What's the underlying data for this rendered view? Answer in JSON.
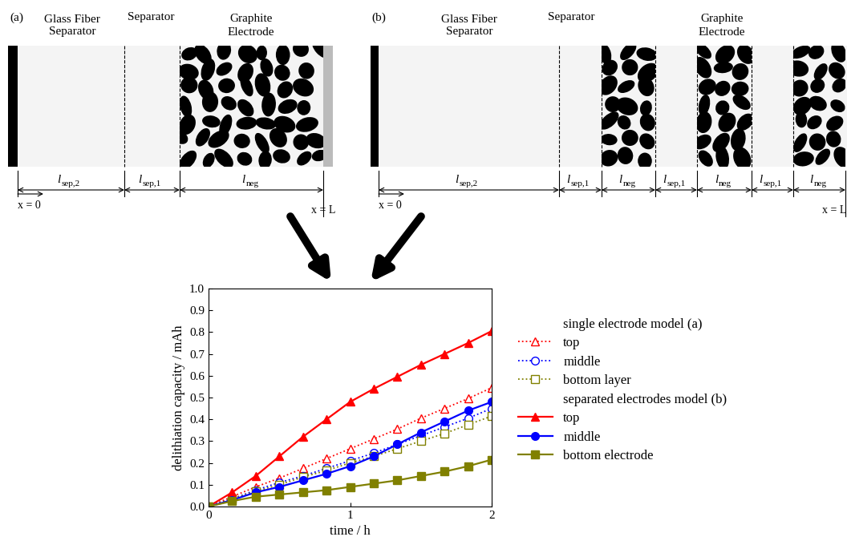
{
  "diagram": {
    "panels": [
      {
        "label": "(a)",
        "headers": [
          "Glass Fiber\nSeparator",
          "Separator",
          "Graphite\nElectrode"
        ],
        "segments": [
          {
            "symbol": "l",
            "subscript": "sep,2"
          },
          {
            "symbol": "l",
            "subscript": "sep,1"
          },
          {
            "symbol": "l",
            "subscript": "neg"
          }
        ],
        "origin": "x = 0",
        "end": "x = L"
      },
      {
        "label": "(b)",
        "headers": [
          "Glass Fiber\nSeparator",
          "Separator",
          "Graphite\nElectrode"
        ],
        "segments": [
          {
            "symbol": "l",
            "subscript": "sep,2"
          },
          {
            "symbol": "l",
            "subscript": "sep,1"
          },
          {
            "symbol": "l",
            "subscript": "neg"
          },
          {
            "symbol": "l",
            "subscript": "sep,1"
          },
          {
            "symbol": "l",
            "subscript": "neg"
          },
          {
            "symbol": "l",
            "subscript": "sep,1"
          },
          {
            "symbol": "l",
            "subscript": "neg"
          }
        ],
        "origin": "x = 0",
        "end": "x = L"
      }
    ]
  },
  "chart_data": {
    "type": "line",
    "x_label": "time / h",
    "y_label": "delithiation capacity / mAh",
    "xlim": [
      0,
      2
    ],
    "xticks": [
      0,
      1,
      2
    ],
    "ylim": [
      0,
      1
    ],
    "yticks": [
      {
        "value": 0,
        "label": "0.0"
      },
      {
        "value": 0.1,
        "label": "0.1"
      },
      {
        "value": 0.2,
        "label": "0.2"
      },
      {
        "value": 0.3,
        "label": "0.3"
      },
      {
        "value": 0.4,
        "label": "0.4"
      },
      {
        "value": 0.5,
        "label": "0.5"
      },
      {
        "value": 0.6,
        "label": "0.6"
      },
      {
        "value": 0.7,
        "label": "0.7"
      },
      {
        "value": 0.8,
        "label": "0.8"
      },
      {
        "value": 0.9,
        "label": "0.9"
      },
      {
        "value": 1,
        "label": "1.0"
      }
    ],
    "grid": false,
    "legend": "upper left",
    "legend_titles": [
      "single electrode model (a)",
      "separated electrodes model (b)"
    ],
    "x": [
      0,
      0.167,
      0.333,
      0.5,
      0.667,
      0.833,
      1.0,
      1.167,
      1.333,
      1.5,
      1.667,
      1.833,
      2.0
    ],
    "series": [
      {
        "name": "top",
        "color": "#ff0000",
        "marker": "triangle",
        "line_style": "dotted",
        "values": [
          0,
          0.045,
          0.09,
          0.13,
          0.175,
          0.22,
          0.265,
          0.31,
          0.355,
          0.405,
          0.45,
          0.495,
          0.545
        ]
      },
      {
        "name": "middle",
        "color": "#0000ff",
        "marker": "circle",
        "line_style": "dotted",
        "values": [
          0,
          0.035,
          0.075,
          0.11,
          0.14,
          0.175,
          0.21,
          0.245,
          0.285,
          0.325,
          0.365,
          0.405,
          0.45
        ]
      },
      {
        "name": "bottom layer",
        "color": "#808000",
        "marker": "square",
        "line_style": "dotted",
        "values": [
          0,
          0.035,
          0.07,
          0.1,
          0.135,
          0.165,
          0.2,
          0.23,
          0.265,
          0.3,
          0.335,
          0.375,
          0.415
        ]
      },
      {
        "name": "top",
        "color": "#ff0000",
        "marker": "triangle",
        "line_style": "solid",
        "values": [
          0,
          0.065,
          0.14,
          0.23,
          0.32,
          0.4,
          0.48,
          0.54,
          0.595,
          0.65,
          0.7,
          0.75,
          0.805
        ]
      },
      {
        "name": "middle",
        "color": "#0000ff",
        "marker": "circle",
        "line_style": "solid",
        "values": [
          0,
          0.03,
          0.065,
          0.09,
          0.12,
          0.15,
          0.185,
          0.23,
          0.285,
          0.34,
          0.39,
          0.44,
          0.48
        ]
      },
      {
        "name": "bottom electrode",
        "color": "#808000",
        "marker": "square",
        "line_style": "solid",
        "values": [
          0,
          0.025,
          0.045,
          0.055,
          0.065,
          0.075,
          0.09,
          0.105,
          0.12,
          0.14,
          0.16,
          0.185,
          0.215
        ]
      }
    ]
  }
}
